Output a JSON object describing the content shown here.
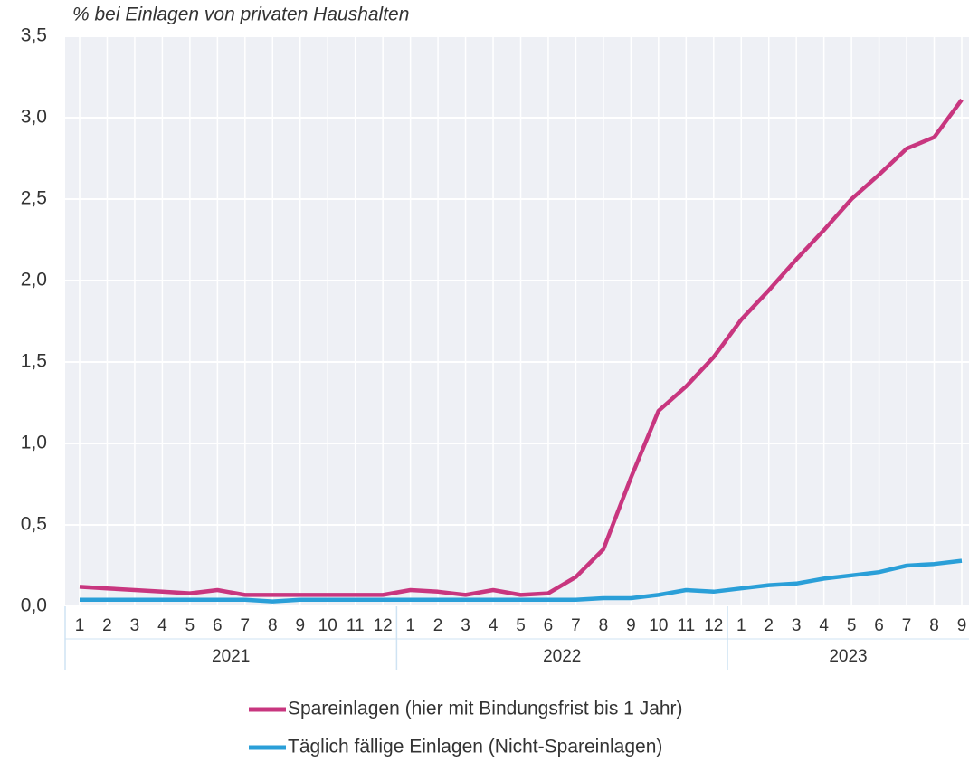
{
  "chart_data": {
    "type": "line",
    "title": "% bei Einlagen von privaten Haushalten",
    "categories": [
      [
        "1",
        "2021"
      ],
      [
        "2",
        "2021"
      ],
      [
        "3",
        "2021"
      ],
      [
        "4",
        "2021"
      ],
      [
        "5",
        "2021"
      ],
      [
        "6",
        "2021"
      ],
      [
        "7",
        "2021"
      ],
      [
        "8",
        "2021"
      ],
      [
        "9",
        "2021"
      ],
      [
        "10",
        "2021"
      ],
      [
        "11",
        "2021"
      ],
      [
        "12",
        "2021"
      ],
      [
        "1",
        "2022"
      ],
      [
        "2",
        "2022"
      ],
      [
        "3",
        "2022"
      ],
      [
        "4",
        "2022"
      ],
      [
        "5",
        "2022"
      ],
      [
        "6",
        "2022"
      ],
      [
        "7",
        "2022"
      ],
      [
        "8",
        "2022"
      ],
      [
        "9",
        "2022"
      ],
      [
        "10",
        "2022"
      ],
      [
        "11",
        "2022"
      ],
      [
        "12",
        "2022"
      ],
      [
        "1",
        "2023"
      ],
      [
        "2",
        "2023"
      ],
      [
        "3",
        "2023"
      ],
      [
        "4",
        "2023"
      ],
      [
        "5",
        "2023"
      ],
      [
        "6",
        "2023"
      ],
      [
        "7",
        "2023"
      ],
      [
        "8",
        "2023"
      ],
      [
        "9",
        "2023"
      ]
    ],
    "series": [
      {
        "name": "Spareinlagen (hier mit Bindungsfrist bis 1 Jahr)",
        "color": "#c8367f",
        "values": [
          0.12,
          0.11,
          0.1,
          0.09,
          0.08,
          0.1,
          0.07,
          0.07,
          0.07,
          0.07,
          0.07,
          0.07,
          0.1,
          0.09,
          0.07,
          0.1,
          0.07,
          0.08,
          0.18,
          0.35,
          0.79,
          1.2,
          1.35,
          1.53,
          1.76,
          1.94,
          2.13,
          2.31,
          2.5,
          2.65,
          2.81,
          2.88,
          3.11
        ]
      },
      {
        "name": "Täglich fällige Einlagen (Nicht-Spareinlagen)",
        "color": "#2a9fd8",
        "values": [
          0.04,
          0.04,
          0.04,
          0.04,
          0.04,
          0.04,
          0.04,
          0.03,
          0.04,
          0.04,
          0.04,
          0.04,
          0.04,
          0.04,
          0.04,
          0.04,
          0.04,
          0.04,
          0.04,
          0.05,
          0.05,
          0.07,
          0.1,
          0.09,
          0.11,
          0.13,
          0.14,
          0.17,
          0.19,
          0.21,
          0.25,
          0.26,
          0.28
        ]
      }
    ],
    "ylim": [
      0,
      3.5
    ],
    "yticks": [
      {
        "value": 0,
        "label": "0,0"
      },
      {
        "value": 0.5,
        "label": "0,5"
      },
      {
        "value": 1,
        "label": "1,0"
      },
      {
        "value": 1.5,
        "label": "1,5"
      },
      {
        "value": 2,
        "label": "2,0"
      },
      {
        "value": 2.5,
        "label": "2,5"
      },
      {
        "value": 3,
        "label": "3,0"
      },
      {
        "value": 3.5,
        "label": "3,5"
      }
    ],
    "grid": true
  }
}
